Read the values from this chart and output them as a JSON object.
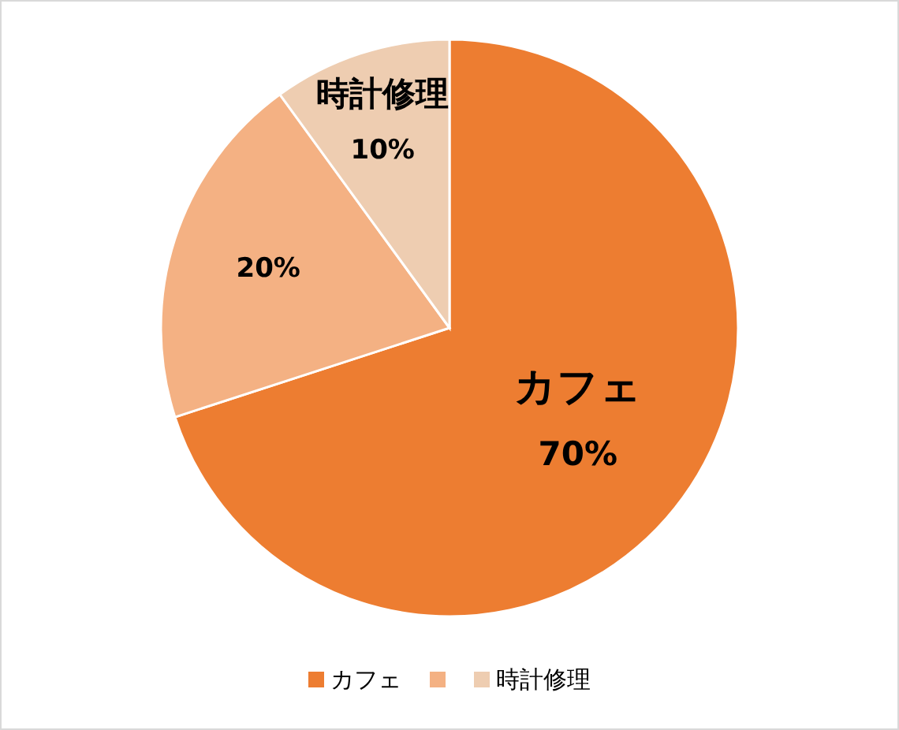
{
  "chart_data": {
    "type": "pie",
    "categories": [
      "カフェ",
      null,
      "時計修理"
    ],
    "values": [
      70,
      20,
      10
    ],
    "colors": [
      "#ed7d31",
      "#f4b183",
      "#eecdb1"
    ],
    "value_labels": [
      "70%",
      "20%",
      "10%"
    ],
    "legend": "bottom"
  }
}
